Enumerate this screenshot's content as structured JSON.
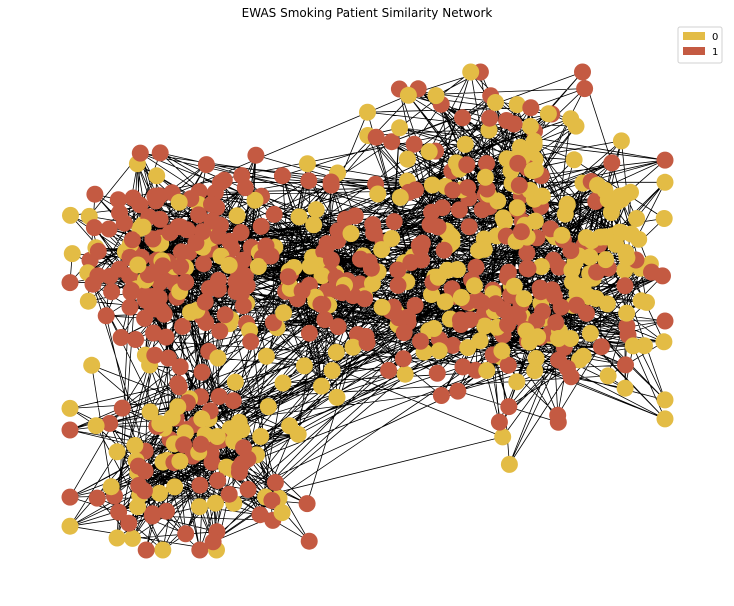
{
  "figure": {
    "title": "EWAS Smoking Patient Similarity Network"
  },
  "legend": {
    "position": "top-right",
    "entries": [
      {
        "label": "0",
        "color": "#e3bc45"
      },
      {
        "label": "1",
        "color": "#c45a42"
      }
    ]
  },
  "colors": {
    "class_0": "#e3bc45",
    "class_1": "#c45a42",
    "edge": "#000000",
    "background": "#ffffff"
  },
  "network": {
    "classes": [
      "0",
      "1"
    ],
    "node_count_approx": 700,
    "edge_color": "black",
    "layout": "force-directed"
  }
}
